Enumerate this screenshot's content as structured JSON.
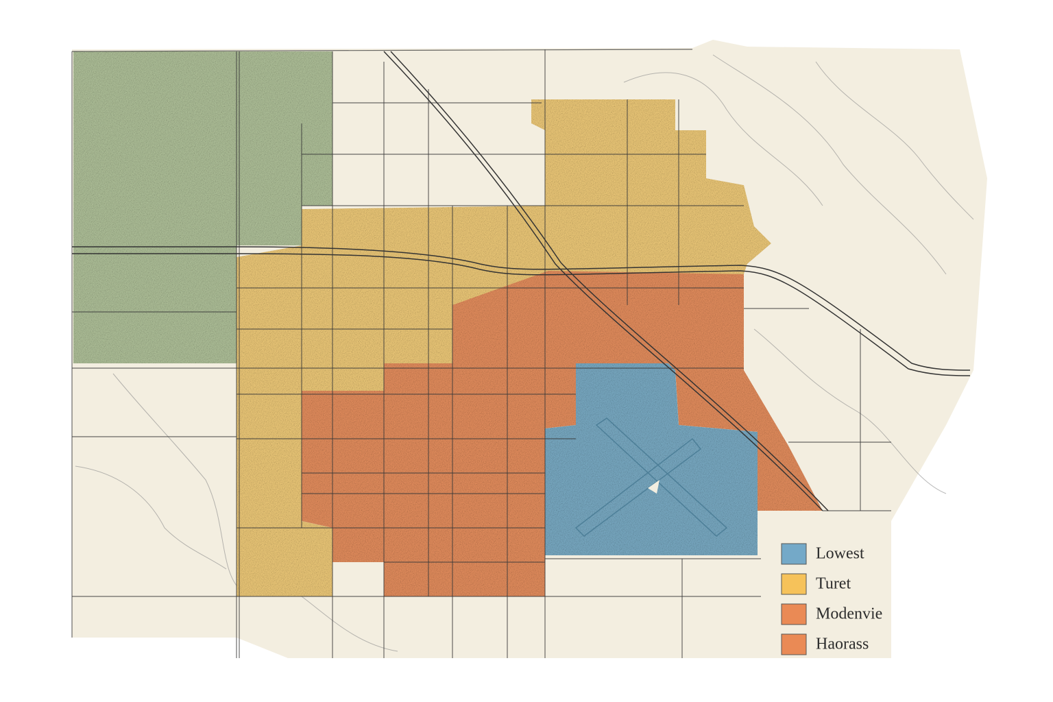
{
  "legend": {
    "items": [
      {
        "label": "Lowest",
        "color": "#74a9c8"
      },
      {
        "label": "Turet",
        "color": "#f6c25a"
      },
      {
        "label": "Modenvie",
        "color": "#ea8a55"
      },
      {
        "label": "Haorass",
        "color": "#ea8a55"
      }
    ]
  }
}
